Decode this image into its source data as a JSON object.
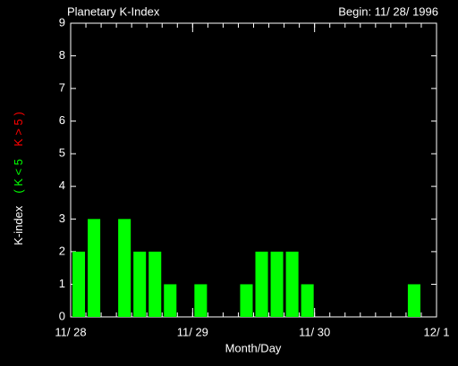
{
  "chart_data": {
    "type": "bar",
    "title": "Planetary K-Index",
    "subtitle": "Begin: 11/ 28/ 1996",
    "xlabel": "Month/Day",
    "ylabel": "K-index",
    "legend": [
      {
        "label": "( K < 5",
        "color": "#00ff00"
      },
      {
        "label": "K > 5 )",
        "color": "#ff0000"
      }
    ],
    "x": [
      0,
      3,
      6,
      9,
      12,
      15,
      18,
      21,
      24,
      27,
      30,
      33,
      36,
      39,
      42,
      45,
      48,
      51,
      54,
      57,
      60,
      63,
      66,
      69
    ],
    "values": [
      2,
      3,
      0,
      3,
      2,
      2,
      1,
      0,
      1,
      0,
      0,
      1,
      2,
      2,
      2,
      1,
      0,
      0,
      0,
      0,
      0,
      0,
      1,
      0
    ],
    "color": "#00ff00",
    "xlim": [
      0,
      72
    ],
    "xticks": [
      {
        "value": 0,
        "label": "11/ 28"
      },
      {
        "value": 24,
        "label": "11/ 29"
      },
      {
        "value": 48,
        "label": "11/ 30"
      },
      {
        "value": 72,
        "label": "12/ 1"
      }
    ],
    "ylim": [
      0,
      9
    ],
    "yticks": [
      0,
      1,
      2,
      3,
      4,
      5,
      6,
      7,
      8,
      9
    ]
  }
}
